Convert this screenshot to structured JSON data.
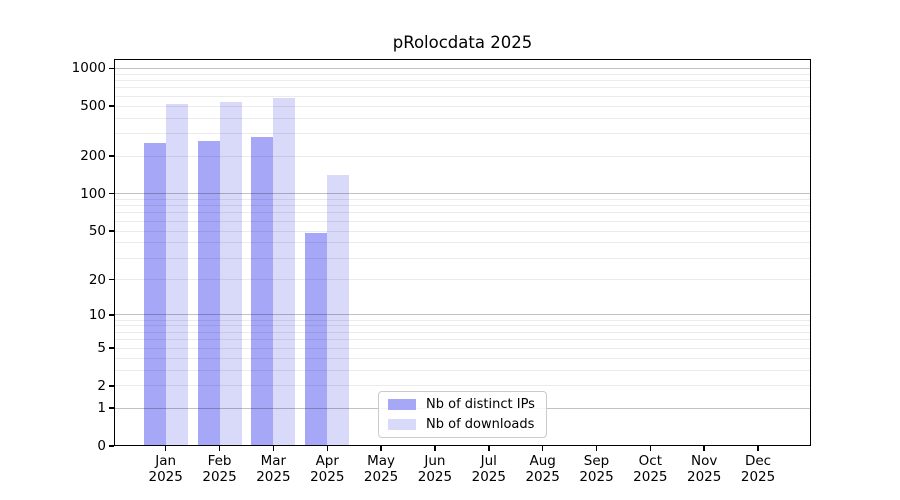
{
  "chart_data": {
    "type": "bar",
    "title": "pRolocdata 2025",
    "year": "2025",
    "categories": [
      "Jan",
      "Feb",
      "Mar",
      "Apr",
      "May",
      "Jun",
      "Jul",
      "Aug",
      "Sep",
      "Oct",
      "Nov",
      "Dec"
    ],
    "series": [
      {
        "name": "Nb of distinct IPs",
        "color": "#a7a7f8",
        "values": [
          255,
          262,
          285,
          48,
          null,
          null,
          null,
          null,
          null,
          null,
          null,
          null
        ]
      },
      {
        "name": "Nb of downloads",
        "color": "#d9d9fa",
        "values": [
          520,
          535,
          585,
          142,
          null,
          null,
          null,
          null,
          null,
          null,
          null,
          null
        ]
      }
    ],
    "xlabel": "",
    "ylabel": "",
    "yscale": "log10(1+y)",
    "y_ticks": [
      0,
      1,
      2,
      5,
      10,
      20,
      50,
      100,
      200,
      500,
      1000
    ],
    "y_tick_labels": [
      "0",
      "1",
      "2",
      "5",
      "10",
      "20",
      "50",
      "100",
      "200",
      "500",
      "1000"
    ],
    "ylim": [
      0,
      1185
    ],
    "grid": "horizontal major+minor",
    "legend_position": "lower center"
  },
  "colors": {
    "background": "#ffffff",
    "spine": "#000000",
    "grid_major": "rgba(0,0,0,0.24)",
    "grid_minor": "rgba(0,0,0,0.08)",
    "tick_label": "#000000",
    "legend_border": "#cbcbcb"
  }
}
